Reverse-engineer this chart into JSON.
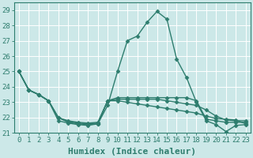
{
  "title": "",
  "xlabel": "Humidex (Indice chaleur)",
  "ylabel": "",
  "background_color": "#cce8e8",
  "grid_color": "#ffffff",
  "line_color": "#2e7d6e",
  "xlim": [
    -0.5,
    23.5
  ],
  "ylim": [
    21,
    29.5
  ],
  "xticks": [
    0,
    1,
    2,
    3,
    4,
    5,
    6,
    7,
    8,
    9,
    10,
    11,
    12,
    13,
    14,
    15,
    16,
    17,
    18,
    19,
    20,
    21,
    22,
    23
  ],
  "yticks": [
    21,
    22,
    23,
    24,
    25,
    26,
    27,
    28,
    29
  ],
  "series": [
    [
      25.0,
      23.8,
      23.5,
      23.1,
      21.8,
      21.65,
      21.55,
      21.5,
      21.6,
      22.8,
      25.0,
      27.0,
      27.3,
      28.2,
      28.9,
      28.4,
      25.8,
      24.6,
      23.0,
      21.8,
      21.55,
      21.1,
      21.5,
      21.55
    ],
    [
      25.0,
      23.8,
      23.5,
      23.1,
      22.0,
      21.7,
      21.6,
      21.55,
      21.6,
      23.1,
      23.3,
      23.3,
      23.3,
      23.3,
      23.3,
      23.3,
      23.3,
      23.3,
      23.1,
      21.9,
      21.8,
      21.7,
      21.7,
      21.7
    ],
    [
      25.0,
      23.8,
      23.5,
      23.1,
      22.0,
      21.75,
      21.65,
      21.6,
      21.65,
      23.1,
      23.2,
      23.2,
      23.2,
      23.2,
      23.2,
      23.1,
      23.0,
      22.9,
      22.8,
      22.5,
      22.1,
      21.85,
      21.8,
      21.8
    ],
    [
      25.0,
      23.8,
      23.5,
      23.1,
      22.0,
      21.8,
      21.7,
      21.65,
      21.7,
      23.1,
      23.1,
      23.0,
      22.9,
      22.8,
      22.7,
      22.6,
      22.5,
      22.4,
      22.3,
      22.1,
      21.95,
      21.9,
      21.85,
      21.6
    ]
  ],
  "marker": "D",
  "marker_size": 2.5,
  "linewidth": 1.0,
  "font_family": "monospace",
  "xlabel_fontsize": 8,
  "tick_fontsize": 6.5
}
